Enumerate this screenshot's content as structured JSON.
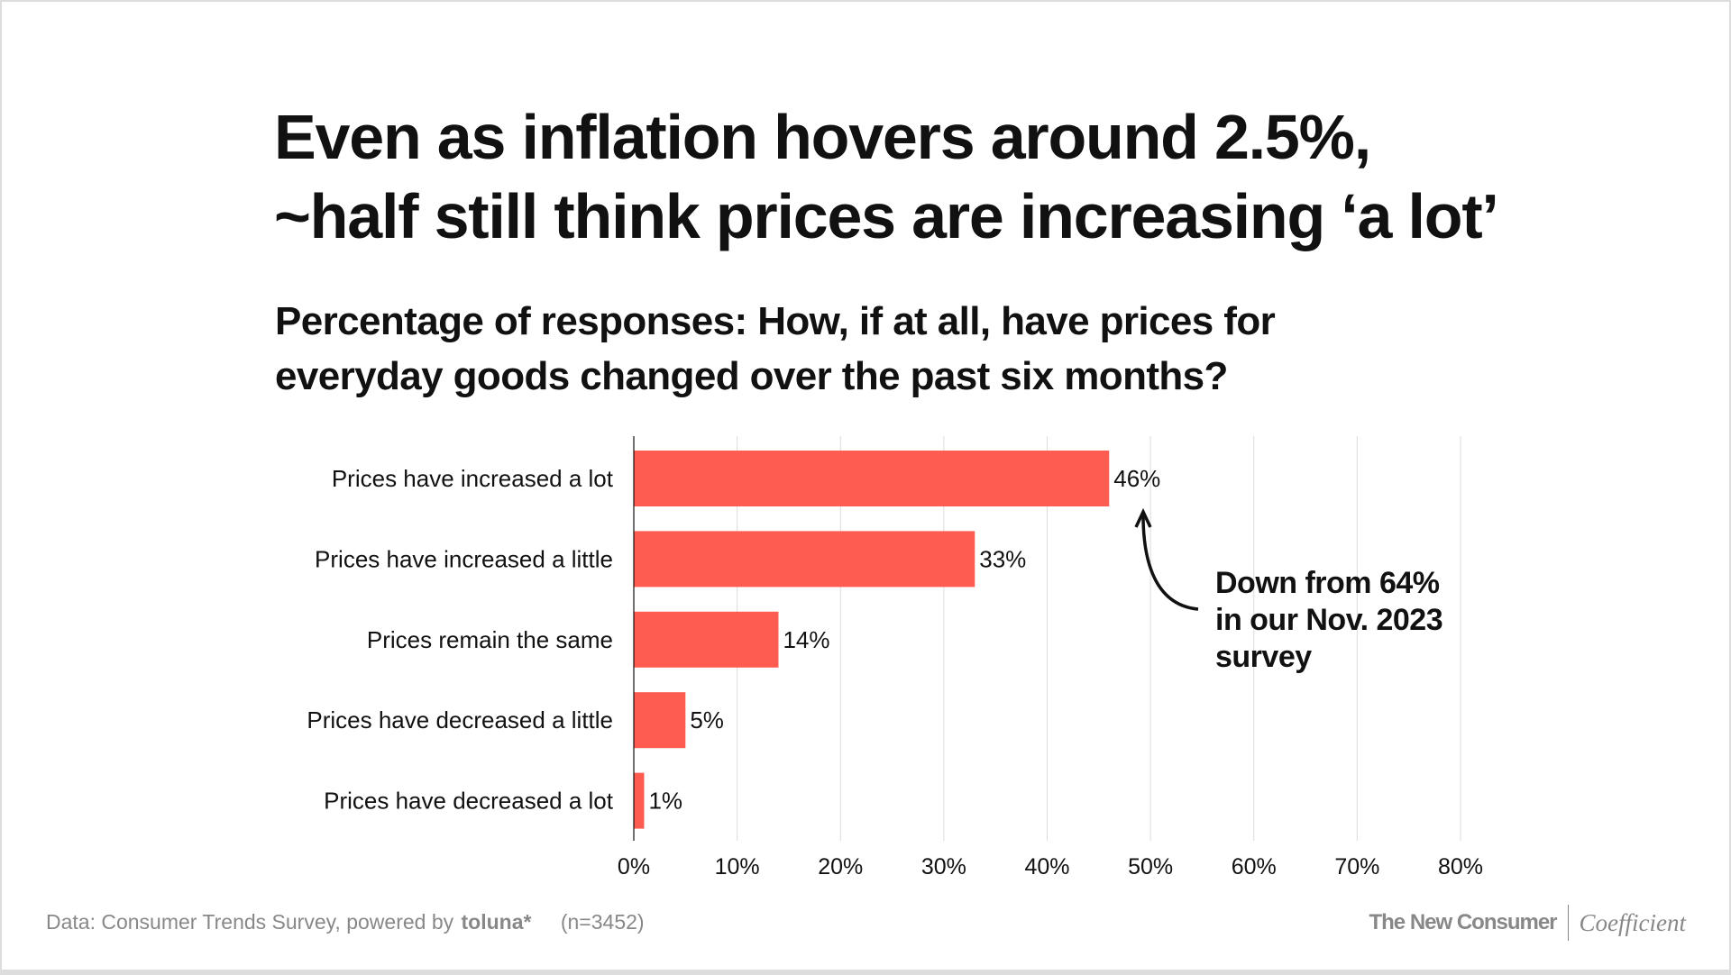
{
  "title_lines": [
    "Even as inflation hovers around 2.5%,",
    "~half still think prices are increasing ‘a lot’"
  ],
  "subtitle_lines": [
    "Percentage of responses: How, if at all, have prices for",
    "everyday goods changed over the past six months?"
  ],
  "chart_data": {
    "type": "bar",
    "orientation": "horizontal",
    "categories": [
      "Prices have increased a lot",
      "Prices have increased a little",
      "Prices remain the same",
      "Prices have decreased a little",
      "Prices have decreased a lot"
    ],
    "values": [
      46,
      33,
      14,
      5,
      1
    ],
    "data_labels": [
      "46%",
      "33%",
      "14%",
      "5%",
      "1%"
    ],
    "xlim": [
      0,
      80
    ],
    "x_ticks": [
      0,
      10,
      20,
      30,
      40,
      50,
      60,
      70,
      80
    ],
    "x_tick_labels": [
      "0%",
      "10%",
      "20%",
      "30%",
      "40%",
      "50%",
      "60%",
      "70%",
      "80%"
    ],
    "grid": true,
    "bar_color": "#FF5C51",
    "annotation": {
      "lines": [
        "Down from 64%",
        "in our Nov. 2023",
        "survey"
      ],
      "target": "Prices have increased a lot"
    }
  },
  "footer": {
    "source": "Data: Consumer Trends Survey, powered by",
    "toluna": "toluna*",
    "sample": "(n=3452)",
    "brand1": "The New Consumer",
    "brand2": "Coefficient"
  }
}
